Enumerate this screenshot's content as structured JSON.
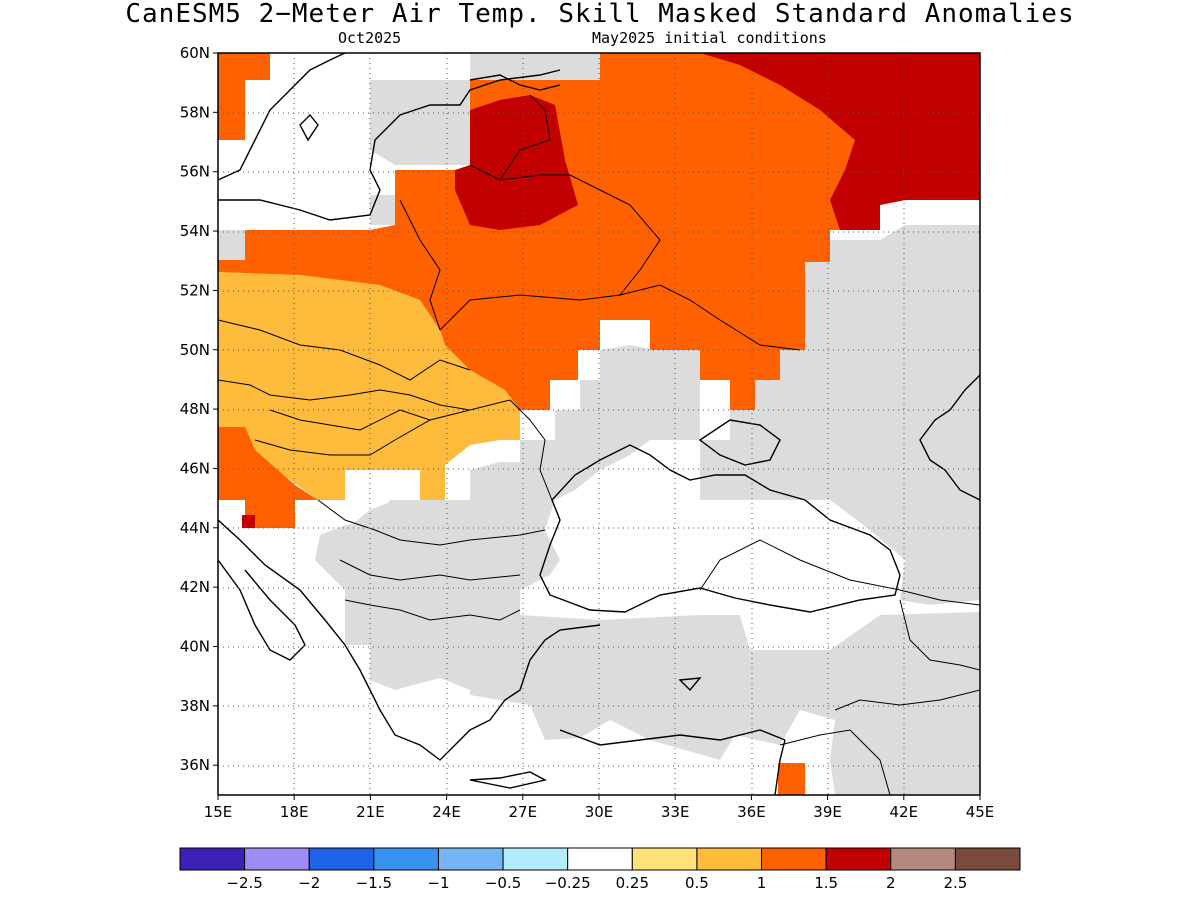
{
  "title": "CanESM5 2−Meter Air Temp. Skill Masked Standard Anomalies",
  "subtitle_left": "Oct2025",
  "subtitle_right": "May2025 initial conditions",
  "map": {
    "lat_labels": [
      "60N",
      "58N",
      "56N",
      "54N",
      "52N",
      "50N",
      "48N",
      "46N",
      "44N",
      "42N",
      "40N",
      "38N",
      "36N"
    ],
    "lon_labels": [
      "15E",
      "18E",
      "21E",
      "24E",
      "27E",
      "30E",
      "33E",
      "36E",
      "39E",
      "42E",
      "45E"
    ],
    "lon_range": [
      15,
      45
    ],
    "lat_range": [
      35,
      60
    ],
    "grid": "dotted"
  },
  "colorbar": {
    "colors": [
      "#3d20b8",
      "#9c8cf5",
      "#1e63e8",
      "#3a92f0",
      "#74b4f7",
      "#b0ecfa",
      "#ffffff",
      "#ffe27a",
      "#ffbb3c",
      "#ff6000",
      "#c20000",
      "#b58a7e",
      "#7a4a3c"
    ],
    "labels": [
      "−2.5",
      "−2",
      "−1.5",
      "−1",
      "−0.5",
      "−0.25",
      "0.25",
      "0.5",
      "1",
      "1.5",
      "2",
      "2.5"
    ]
  },
  "colors": {
    "no_skill": "#dcdcdc",
    "anom_05": "#ffbb3c",
    "anom_1": "#ff6000",
    "anom_15": "#c20000"
  }
}
